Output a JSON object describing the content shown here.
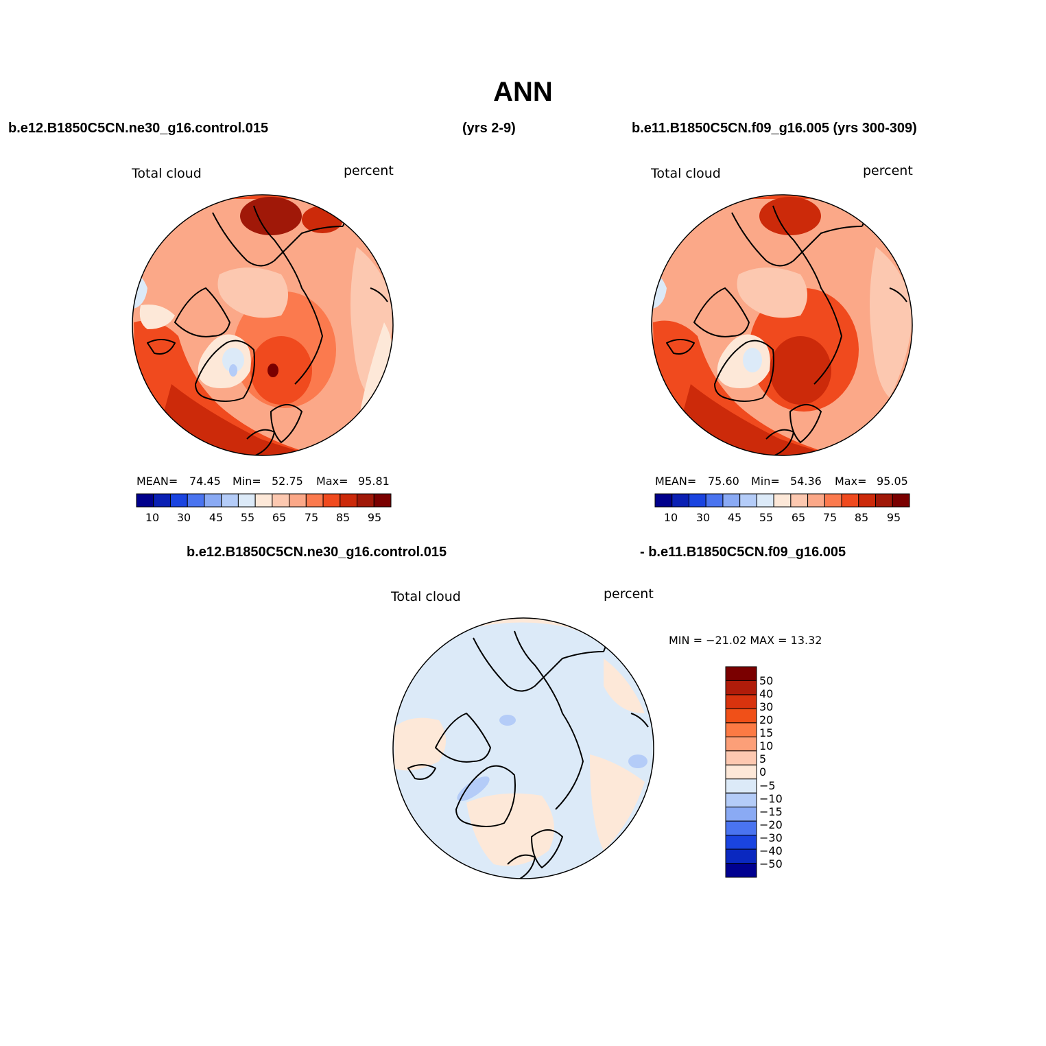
{
  "title": "ANN",
  "headers": {
    "top_left": "b.e12.B1850C5CN.ne30_g16.control.015",
    "top_center": "(yrs 2-9)",
    "top_right": "b.e11.B1850C5CN.f09_g16.005 (yrs 300-309)",
    "bottom_left": "b.e12.B1850C5CN.ne30_g16.control.015",
    "bottom_right": "- b.e11.B1850C5CN.f09_g16.005"
  },
  "panels": [
    {
      "variable": "Total cloud",
      "units": "percent",
      "mean_label": "MEAN=",
      "mean": "74.45",
      "min_label": "Min=",
      "min": "52.75",
      "max_label": "Max=",
      "max": "95.81"
    },
    {
      "variable": "Total cloud",
      "units": "percent",
      "mean_label": "MEAN=",
      "mean": "75.60",
      "min_label": "Min=",
      "min": "54.36",
      "max_label": "Max=",
      "max": "95.05"
    },
    {
      "variable": "Total cloud",
      "units": "percent",
      "minmax_text": "MIN = −21.02 MAX =  13.32"
    }
  ],
  "colorbar_horizontal": {
    "tick_labels": [
      "10",
      "30",
      "45",
      "55",
      "65",
      "75",
      "85",
      "95"
    ],
    "colors": [
      "#00008c",
      "#0a20b4",
      "#1a44e0",
      "#4a74f0",
      "#8aaaf4",
      "#b4ccf8",
      "#dceaf8",
      "#fde8d8",
      "#fcc8b0",
      "#fba888",
      "#fb7a4e",
      "#f04a1e",
      "#cc2a0a",
      "#a01808",
      "#7a0000"
    ]
  },
  "colorbar_vertical": {
    "tick_labels": [
      "50",
      "40",
      "30",
      "20",
      "15",
      "10",
      "5",
      "0",
      "−5",
      "−10",
      "−15",
      "−20",
      "−30",
      "−40",
      "−50"
    ],
    "colors": [
      "#7a0000",
      "#b01c0a",
      "#d8330e",
      "#f05018",
      "#fc7a44",
      "#fc9f78",
      "#fdc8b0",
      "#fde8d8",
      "#dceaf8",
      "#b4ccf8",
      "#8aaaf4",
      "#4a74f0",
      "#1a44e0",
      "#0a28c0",
      "#000090"
    ]
  }
}
